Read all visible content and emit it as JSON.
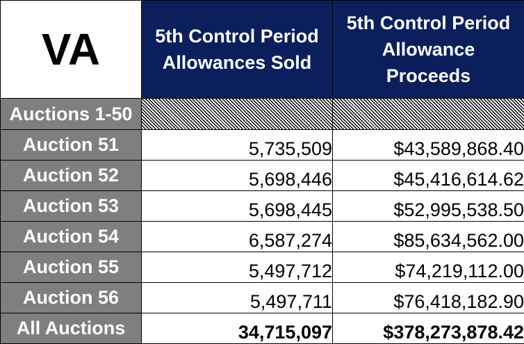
{
  "state": "VA",
  "headers": {
    "sold": [
      "5th Control Period",
      "Allowances Sold"
    ],
    "proceeds": [
      "5th Control Period",
      "Allowance",
      "Proceeds"
    ]
  },
  "hatched_row_label": "Auctions 1-50",
  "rows": [
    {
      "label": "Auction 51",
      "sold": "5,735,509",
      "proceeds": "$43,589,868.40"
    },
    {
      "label": "Auction 52",
      "sold": "5,698,446",
      "proceeds": "$45,416,614.62"
    },
    {
      "label": "Auction 53",
      "sold": "5,698,445",
      "proceeds": "$52,995,538.50"
    },
    {
      "label": "Auction 54",
      "sold": "6,587,274",
      "proceeds": "$85,634,562.00"
    },
    {
      "label": "Auction 55",
      "sold": "5,497,712",
      "proceeds": "$74,219,112.00"
    },
    {
      "label": "Auction 56",
      "sold": "5,497,711",
      "proceeds": "$76,418,182.90"
    }
  ],
  "total": {
    "label": "All Auctions",
    "sold": "34,715,097",
    "proceeds": "$378,273,878.42"
  },
  "colors": {
    "header_fill": "#0b1f5c",
    "label_fill": "#7f7f7f",
    "text_light": "#ffffff",
    "text_dark": "#000000"
  }
}
